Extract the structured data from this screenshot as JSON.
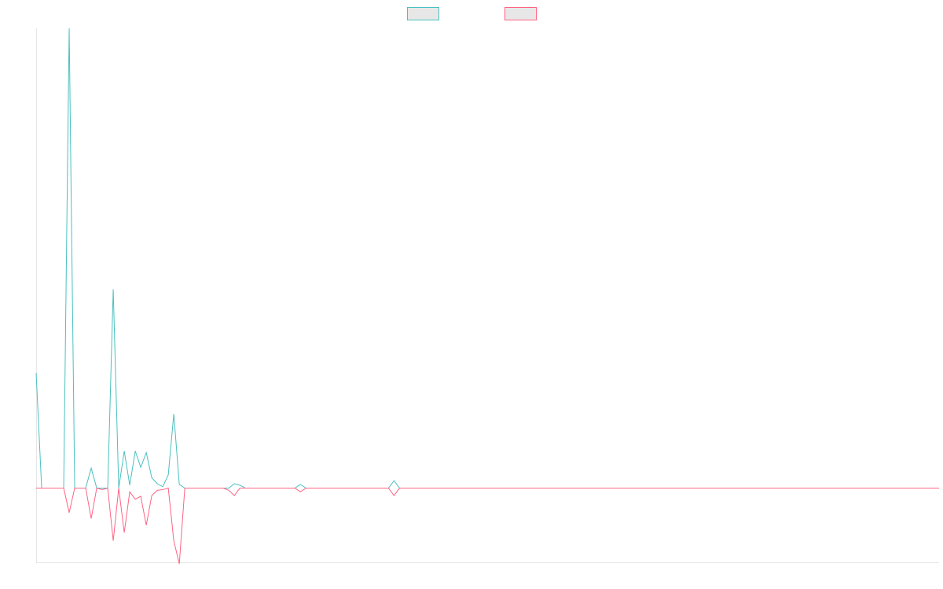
{
  "chart_data": {
    "type": "line",
    "title": "",
    "xlabel": "",
    "ylabel": "",
    "grid": false,
    "legend": "top-center",
    "x": [
      0,
      1,
      2,
      3,
      4,
      5,
      6,
      7,
      8,
      9,
      10,
      11,
      12,
      13,
      14,
      15,
      16,
      17,
      18,
      19,
      20,
      21,
      22,
      23,
      24,
      25,
      26,
      27,
      28,
      29,
      30,
      31,
      32,
      33,
      34,
      35,
      36,
      37,
      38,
      39,
      40,
      41,
      42,
      43,
      44,
      45,
      46,
      47,
      48,
      49,
      50,
      51,
      52,
      53,
      54,
      55,
      56,
      57,
      58,
      59,
      60,
      61,
      62,
      63,
      64,
      65,
      66,
      67,
      68,
      69,
      70,
      71,
      72,
      73,
      74,
      75,
      76,
      77,
      78,
      79,
      80,
      81,
      82,
      83,
      84,
      85,
      86,
      87,
      88,
      89,
      90,
      91,
      92,
      93,
      94,
      95,
      96,
      97,
      98,
      99,
      100,
      101,
      102,
      103,
      104,
      105,
      106,
      107,
      108,
      109,
      110,
      111,
      112,
      113,
      114,
      115,
      116,
      117,
      118,
      119,
      120,
      121,
      122,
      123,
      124,
      125,
      126,
      127,
      128,
      129,
      130,
      131,
      132,
      133,
      134,
      135,
      136,
      137,
      138,
      139,
      140,
      141,
      142,
      143,
      144,
      145,
      146,
      147,
      148,
      149,
      150,
      151,
      152,
      153,
      154,
      155,
      156,
      157,
      158,
      159,
      160,
      161,
      162,
      163,
      164
    ],
    "ylim": [
      -100,
      620
    ],
    "series": [
      {
        "name": "",
        "color": "#4bc0c0",
        "values": [
          155,
          0,
          0,
          0,
          0,
          0,
          620,
          0,
          0,
          0,
          27,
          0,
          0,
          0,
          268,
          0,
          50,
          4,
          50,
          28,
          48,
          14,
          6,
          2,
          18,
          100,
          5,
          0,
          0,
          0,
          0,
          0,
          0,
          0,
          0,
          0,
          6,
          4,
          0,
          0,
          0,
          0,
          0,
          0,
          0,
          0,
          0,
          0,
          5,
          0,
          0,
          0,
          0,
          0,
          0,
          0,
          0,
          0,
          0,
          0,
          0,
          0,
          0,
          0,
          0,
          10,
          0,
          0,
          0,
          0,
          0,
          0,
          0,
          0,
          0,
          0,
          0,
          0,
          0,
          0,
          0,
          0,
          0,
          0,
          0,
          0,
          0,
          0,
          0,
          0,
          0,
          0,
          0,
          0,
          0,
          0,
          0,
          0,
          0,
          0,
          0,
          0,
          0,
          0,
          0,
          0,
          0,
          0,
          0,
          0,
          0,
          0,
          0,
          0,
          0,
          0,
          0,
          0,
          0,
          0,
          0,
          0,
          0,
          0,
          0,
          0,
          0,
          0,
          0,
          0,
          0,
          0,
          0,
          0,
          0,
          0,
          0,
          0,
          0,
          0,
          0,
          0,
          0,
          0,
          0,
          0,
          0,
          0,
          0,
          0,
          0,
          0,
          0,
          0,
          0,
          0,
          0,
          0,
          0,
          0,
          0,
          0,
          0,
          0,
          0
        ]
      },
      {
        "name": "",
        "color": "#ff6384",
        "values": [
          0,
          0,
          0,
          0,
          0,
          0,
          -33,
          0,
          0,
          0,
          -41,
          0,
          -2,
          0,
          -71,
          0,
          -60,
          -5,
          -15,
          -11,
          -50,
          -10,
          -3,
          -2,
          0,
          -71,
          -102,
          0,
          0,
          0,
          0,
          0,
          0,
          0,
          0,
          -3,
          -10,
          0,
          0,
          0,
          0,
          0,
          0,
          0,
          0,
          0,
          0,
          0,
          -5,
          0,
          0,
          0,
          0,
          0,
          0,
          0,
          0,
          0,
          0,
          0,
          0,
          0,
          0,
          0,
          0,
          -10,
          0,
          0,
          0,
          0,
          0,
          0,
          0,
          0,
          0,
          0,
          0,
          0,
          0,
          0,
          0,
          0,
          0,
          0,
          0,
          0,
          0,
          0,
          0,
          0,
          0,
          0,
          0,
          0,
          0,
          0,
          0,
          0,
          0,
          0,
          0,
          0,
          0,
          0,
          0,
          0,
          0,
          0,
          0,
          0,
          0,
          0,
          0,
          0,
          0,
          0,
          0,
          0,
          0,
          0,
          0,
          0,
          0,
          0,
          0,
          0,
          0,
          0,
          0,
          0,
          0,
          0,
          0,
          0,
          0,
          0,
          0,
          0,
          0,
          0,
          0,
          0,
          0,
          0,
          0,
          0,
          0,
          0,
          0,
          0,
          0,
          0,
          0,
          0,
          0,
          0,
          0,
          0,
          0,
          0,
          0,
          0,
          0,
          0,
          0
        ]
      }
    ]
  }
}
